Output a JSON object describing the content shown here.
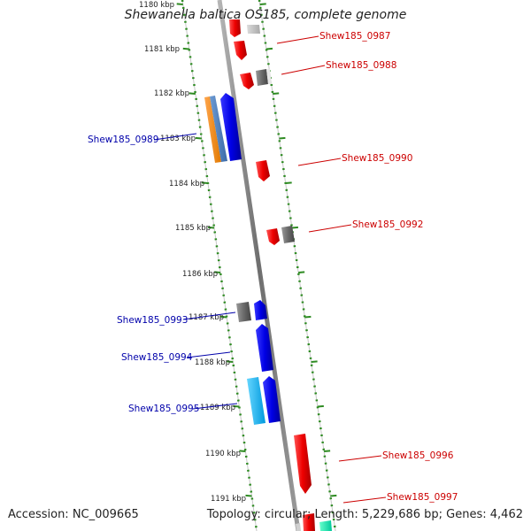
{
  "title": "Shewanella baltica OS185, complete genome",
  "footer": {
    "accession": "Accession: NC_009665",
    "summary": "Topology: circular; Length: 5,229,686 bp; Genes: 4,462"
  },
  "colors": {
    "scale": "#2e8b22",
    "strand_plus": "#0000e6",
    "strand_minus": "#ee0000",
    "backbone": "#8a8a8a",
    "label_left": "#0000aa",
    "label_right": "#cc0000"
  },
  "scale_ticks": [
    "1180 kbp",
    "1181 kbp",
    "1182 kbp",
    "1183 kbp",
    "1184 kbp",
    "1185 kbp",
    "1186 kbp",
    "1187 kbp",
    "1188 kbp",
    "1189 kbp",
    "1190 kbp",
    "1191 kbp"
  ],
  "genes": [
    {
      "name": "Shew185_0987",
      "side": "right"
    },
    {
      "name": "Shew185_0988",
      "side": "right"
    },
    {
      "name": "Shew185_0989",
      "side": "left"
    },
    {
      "name": "Shew185_0990",
      "side": "right"
    },
    {
      "name": "Shew185_0992",
      "side": "right"
    },
    {
      "name": "Shew185_0993",
      "side": "left"
    },
    {
      "name": "Shew185_0994",
      "side": "left"
    },
    {
      "name": "Shew185_0995",
      "side": "left"
    },
    {
      "name": "Shew185_0996",
      "side": "right"
    },
    {
      "name": "Shew185_0997",
      "side": "right"
    }
  ]
}
